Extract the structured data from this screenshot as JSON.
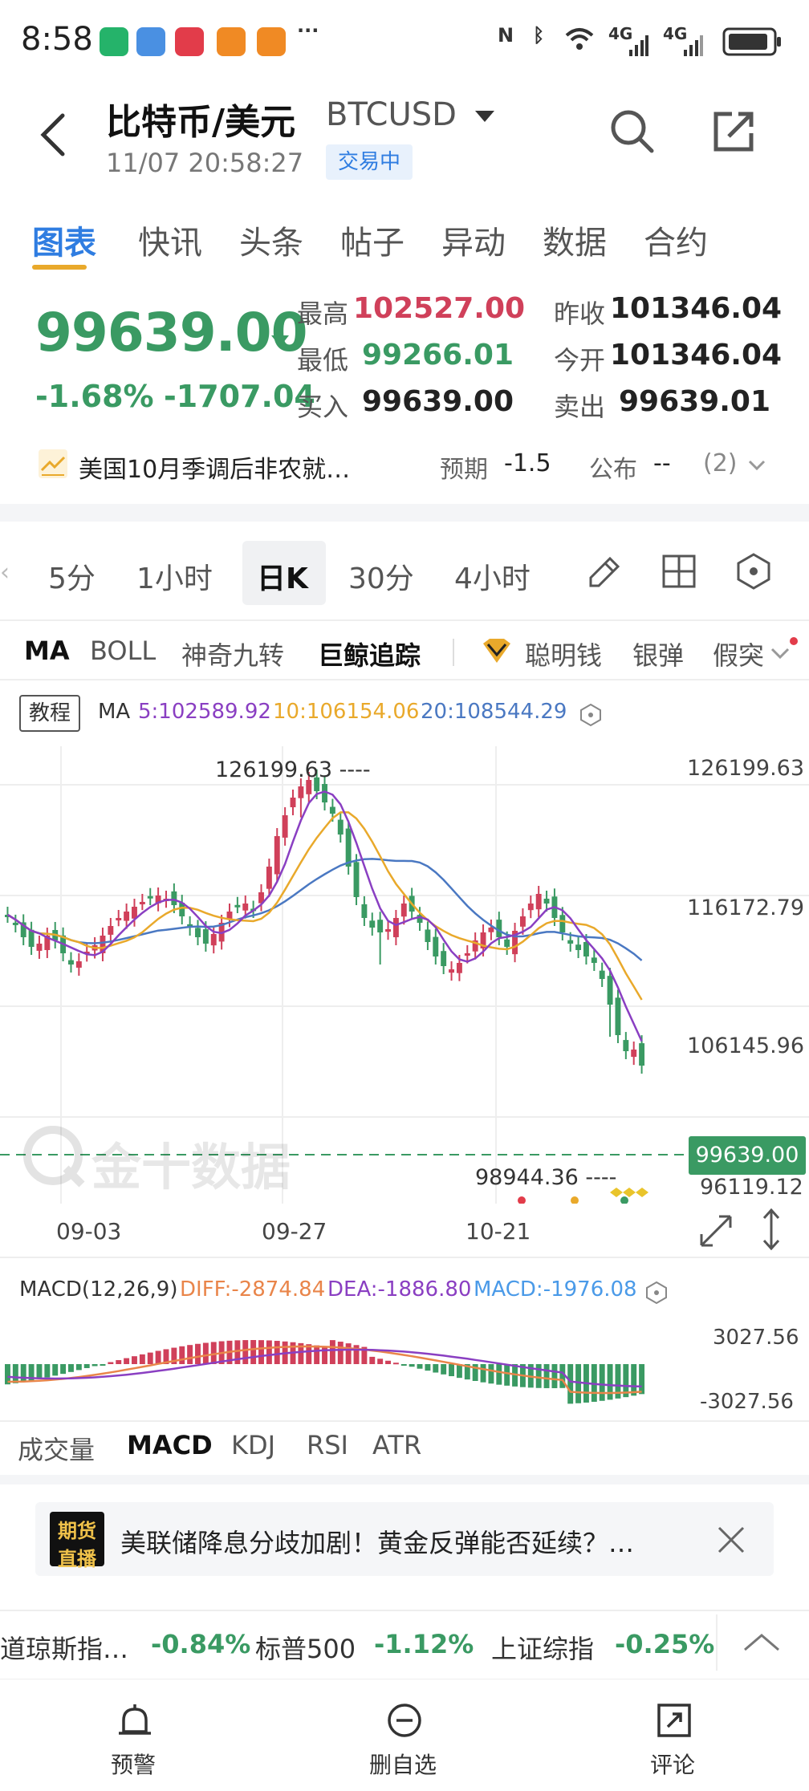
{
  "status_bar": {
    "time": "8:58",
    "net_a": "4G",
    "net_b": "4G"
  },
  "header": {
    "title": "比特币/美元",
    "code": "BTCUSD",
    "datetime": "11/07 20:58:27",
    "state_badge": "交易中"
  },
  "tabs": [
    "图表",
    "快讯",
    "头条",
    "帖子",
    "异动",
    "数据",
    "合约"
  ],
  "quote": {
    "price": "99639.00",
    "change_pct": "-1.68%",
    "change_abs": "-1707.04",
    "high_label": "最高",
    "high": "102527.00",
    "low_label": "最低",
    "low": "99266.01",
    "bid_label": "买入",
    "bid": "99639.00",
    "prev_close_label": "昨收",
    "prev_close": "101346.04",
    "open_label": "今开",
    "open": "101346.04",
    "ask_label": "卖出",
    "ask": "99639.01"
  },
  "news": {
    "text": "美国10月季调后非农就…",
    "expected_label": "预期",
    "expected": "-1.5",
    "publish_label": "公布",
    "publish": "--",
    "count": "(2)"
  },
  "periods": [
    "5分",
    "1小时",
    "日K",
    "30分",
    "4小时"
  ],
  "indicators": [
    "MA",
    "BOLL",
    "神奇九转",
    "巨鲸追踪",
    "聪明钱",
    "银弹",
    "假突"
  ],
  "chart": {
    "course_label": "教程",
    "ma_label": "MA",
    "ma5": "5:102589.92",
    "ma10": "10:106154.06",
    "ma20": "20:108544.29",
    "y_labels": [
      "126199.63",
      "116172.79",
      "106145.96",
      "96119.12"
    ],
    "high_marker": "126199.63 ----",
    "low_marker": "98944.36 ----",
    "current_price_tag": "99639.00",
    "x_labels": [
      "09-03",
      "09-27",
      "10-21"
    ],
    "watermark": "金十数据",
    "macd_label": "MACD(12,26,9)",
    "diff": "DIFF:-2874.84",
    "dea": "DEA:-1886.80",
    "macd": "MACD:-1976.08",
    "macd_y_top": "3027.56",
    "macd_y_bottom": "-3027.56",
    "colors": {
      "up": "#d0405a",
      "down": "#3a9a63",
      "ma5": "#8a3fc2",
      "ma10": "#e9a92b",
      "ma20": "#4a78c2"
    }
  },
  "subtabs": [
    "成交量",
    "MACD",
    "KDJ",
    "RSI",
    "ATR"
  ],
  "banner": {
    "badge_top": "期货",
    "badge_bottom": "直播",
    "text": "美联储降息分歧加剧！黄金反弹能否延续？…"
  },
  "tickers": [
    {
      "name": "道琼斯指…",
      "value": "-0.84%"
    },
    {
      "name": "标普500",
      "value": "-1.12%"
    },
    {
      "name": "上证综指",
      "value": "-0.25%"
    }
  ],
  "bottom_nav": [
    "预警",
    "删自选",
    "评论"
  ]
}
